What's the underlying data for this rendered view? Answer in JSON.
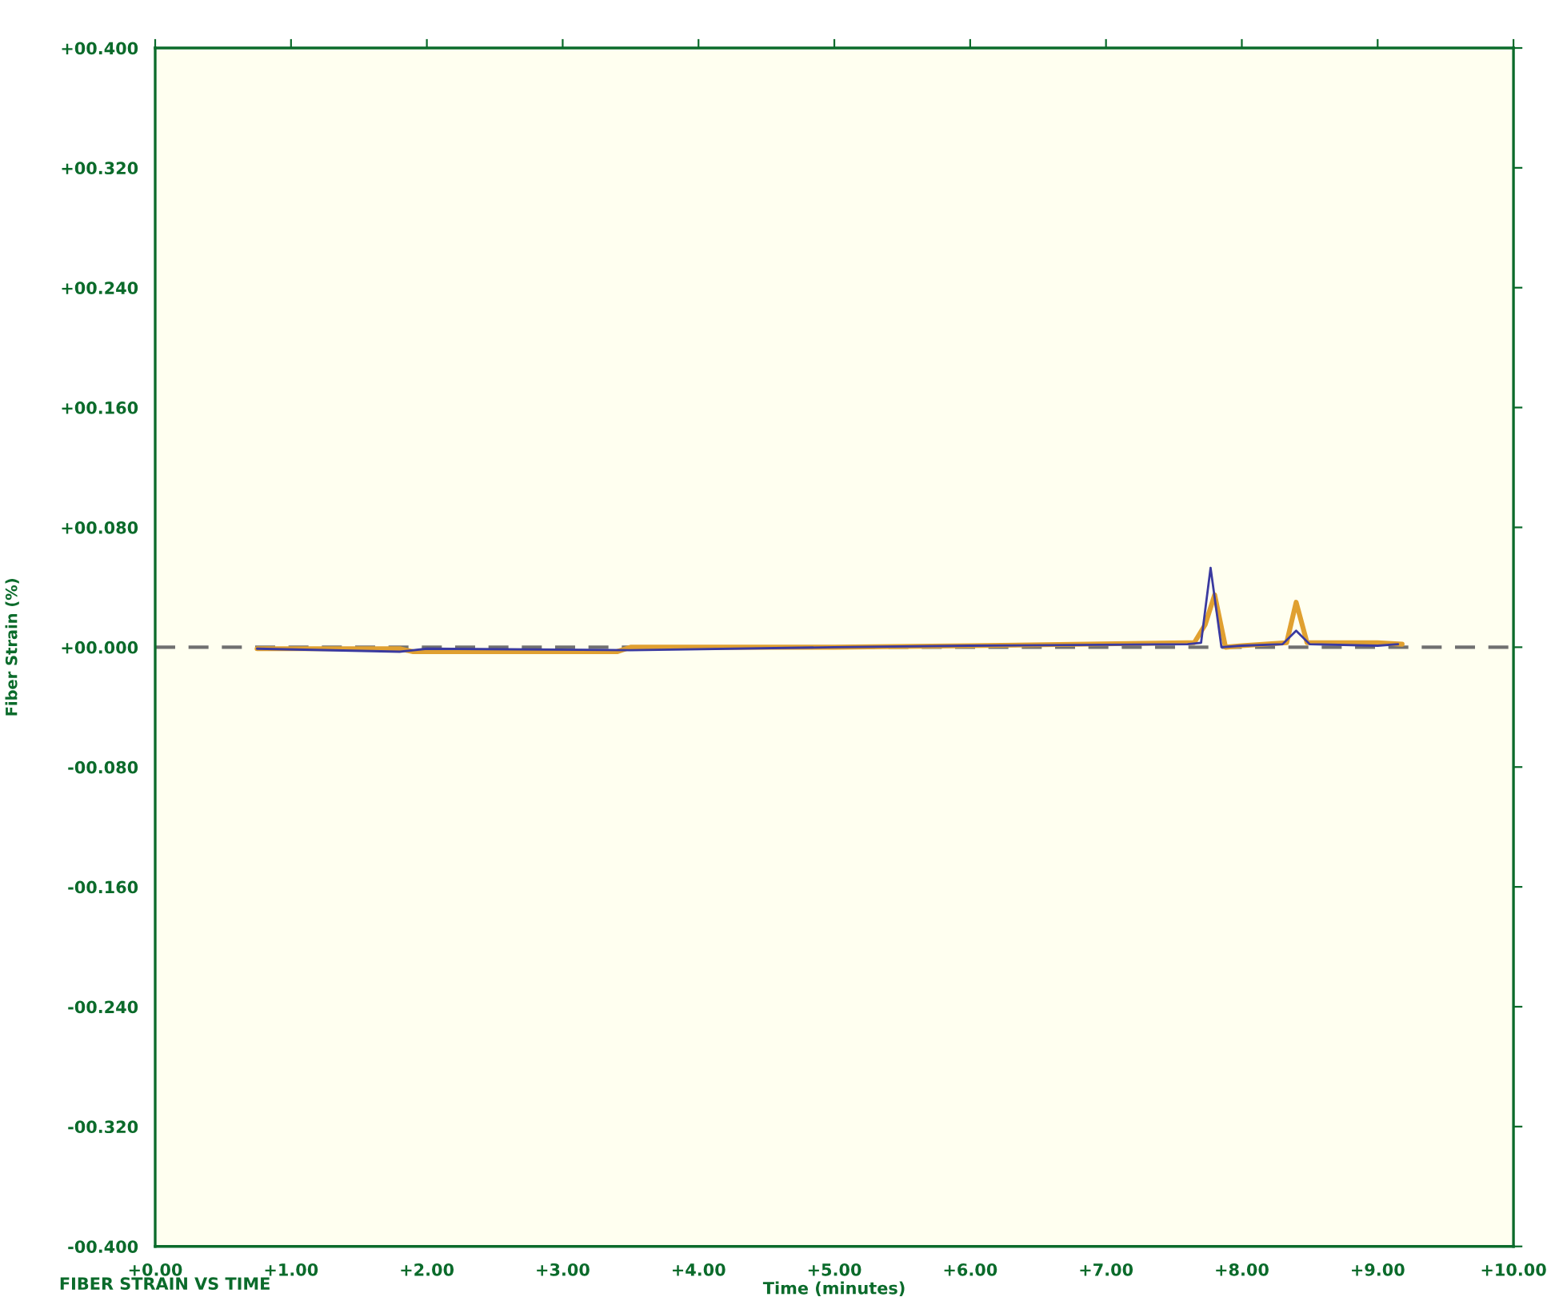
{
  "chart_data": {
    "type": "line",
    "xlabel": "Time (minutes)",
    "ylabel": "Fiber Strain (%)",
    "annotations": [
      "FIBER STRAIN VS TIME"
    ],
    "series": [
      {
        "color": "#e0a030",
        "x": [
          0.75,
          1.8,
          1.9,
          3.4,
          3.5,
          5.0,
          6.0,
          7.6,
          7.65,
          7.73,
          7.8,
          7.88,
          8.0,
          8.33,
          8.4,
          8.48,
          9.0,
          9.18
        ],
        "values": [
          -0.001,
          -0.001,
          -0.003,
          -0.003,
          0.0,
          0.0,
          0.001,
          0.003,
          0.003,
          0.015,
          0.035,
          0.0,
          0.001,
          0.003,
          0.03,
          0.003,
          0.003,
          0.002
        ]
      },
      {
        "color": "#3a3aa0",
        "x": [
          0.75,
          1.8,
          2.0,
          3.5,
          5.0,
          6.0,
          7.6,
          7.7,
          7.77,
          7.85,
          8.0,
          8.3,
          8.4,
          8.5,
          9.0,
          9.15
        ],
        "values": [
          -0.001,
          -0.003,
          -0.001,
          -0.002,
          0.0,
          0.001,
          0.002,
          0.003,
          0.053,
          0.0,
          0.001,
          0.002,
          0.011,
          0.002,
          0.001,
          0.002
        ]
      }
    ],
    "ref_lines": [
      {
        "axis": "y",
        "value": 0,
        "color": "#707070",
        "line_style": "dashed"
      }
    ],
    "xlim": [
      0,
      10
    ],
    "ylim": [
      -0.4,
      0.4
    ],
    "xticks": [
      {
        "value": 0,
        "label": "+0.00"
      },
      {
        "value": 1,
        "label": "+1.00"
      },
      {
        "value": 2,
        "label": "+2.00"
      },
      {
        "value": 3,
        "label": "+3.00"
      },
      {
        "value": 4,
        "label": "+4.00"
      },
      {
        "value": 5,
        "label": "+5.00"
      },
      {
        "value": 6,
        "label": "+6.00"
      },
      {
        "value": 7,
        "label": "+7.00"
      },
      {
        "value": 8,
        "label": "+8.00"
      },
      {
        "value": 9,
        "label": "+9.00"
      },
      {
        "value": 10,
        "label": "+10.00"
      }
    ],
    "yticks": [
      {
        "value": -0.4,
        "label": "-00.400"
      },
      {
        "value": -0.32,
        "label": "-00.320"
      },
      {
        "value": -0.24,
        "label": "-00.240"
      },
      {
        "value": -0.16,
        "label": "-00.160"
      },
      {
        "value": -0.08,
        "label": "-00.080"
      },
      {
        "value": 0,
        "label": "+00.000"
      },
      {
        "value": 0.08,
        "label": "+00.080"
      },
      {
        "value": 0.16,
        "label": "+00.160"
      },
      {
        "value": 0.24,
        "label": "+00.240"
      },
      {
        "value": 0.32,
        "label": "+00.320"
      },
      {
        "value": 0.4,
        "label": "+00.400"
      }
    ],
    "grid": false,
    "legend": false,
    "marker": "none",
    "line_style": "solid"
  }
}
